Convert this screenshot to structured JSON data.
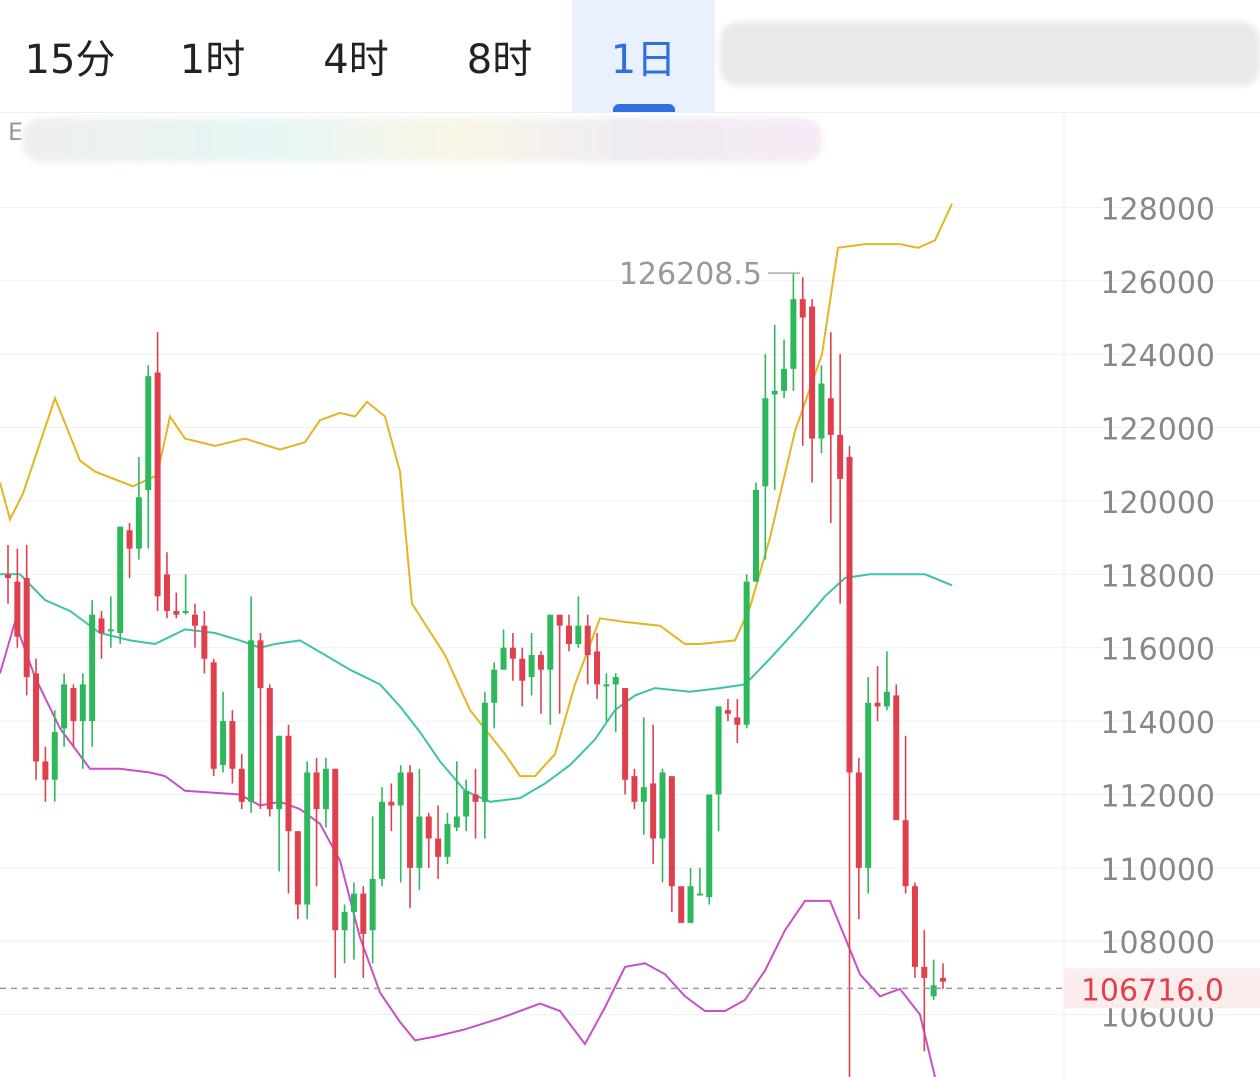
{
  "tabs": [
    {
      "label": "15分",
      "active": false
    },
    {
      "label": "1时",
      "active": false
    },
    {
      "label": "4时",
      "active": false
    },
    {
      "label": "8时",
      "active": false
    },
    {
      "label": "1日",
      "active": true
    }
  ],
  "legend_prefix": "E",
  "chart_data": {
    "type": "candlestick",
    "y_ticks": [
      128000,
      126000,
      124000,
      122000,
      120000,
      118000,
      116000,
      114000,
      112000,
      110000,
      108000,
      106000
    ],
    "ylim": [
      104300,
      130600
    ],
    "grid": true,
    "high_annotation": {
      "label": "126208.5",
      "value": 126208.5
    },
    "current_price": {
      "label": "106716.0",
      "value": 106716.0
    },
    "candles": [
      [
        118000,
        117900,
        118800,
        117200
      ],
      [
        117800,
        116300,
        118700,
        116000
      ],
      [
        117900,
        115200,
        118800,
        114700
      ],
      [
        115300,
        112900,
        115700,
        112400
      ],
      [
        112900,
        112400,
        113300,
        111800
      ],
      [
        112400,
        113700,
        114300,
        111800
      ],
      [
        113800,
        115000,
        115300,
        113300
      ],
      [
        114900,
        114000,
        115000,
        113300
      ],
      [
        114000,
        115000,
        115300,
        112700
      ],
      [
        114000,
        116900,
        117300,
        113300
      ],
      [
        116800,
        116400,
        117000,
        115700
      ],
      [
        116500,
        116500,
        117400,
        116000
      ],
      [
        116400,
        119300,
        119300,
        116100
      ],
      [
        119200,
        118700,
        119400,
        117900
      ],
      [
        118700,
        120100,
        121200,
        118400
      ],
      [
        120300,
        123400,
        123700,
        118700
      ],
      [
        123500,
        117400,
        124600,
        117000
      ],
      [
        118000,
        117000,
        118600,
        116800
      ],
      [
        117000,
        116900,
        117500,
        116800
      ],
      [
        117000,
        117000,
        118000,
        116900
      ],
      [
        116900,
        116600,
        117200,
        116000
      ],
      [
        116600,
        115700,
        117000,
        115300
      ],
      [
        115600,
        112700,
        115700,
        112500
      ],
      [
        112800,
        114000,
        114800,
        112600
      ],
      [
        114000,
        112700,
        114300,
        112300
      ],
      [
        112700,
        111800,
        113100,
        111600
      ],
      [
        111800,
        116200,
        117400,
        111500
      ],
      [
        116200,
        114900,
        116400,
        111600
      ],
      [
        114900,
        111600,
        115000,
        111400
      ],
      [
        111600,
        113600,
        113600,
        109900
      ],
      [
        113600,
        111000,
        113900,
        109300
      ],
      [
        111000,
        109000,
        111000,
        108600
      ],
      [
        109000,
        112600,
        112900,
        108600
      ],
      [
        112600,
        111600,
        113000,
        109500
      ],
      [
        111600,
        112700,
        113000,
        111100
      ],
      [
        112700,
        108300,
        112700,
        107000
      ],
      [
        108300,
        108800,
        109000,
        107400
      ],
      [
        108800,
        109300,
        109600,
        107500
      ],
      [
        109300,
        108200,
        109500,
        107000
      ],
      [
        108300,
        109700,
        111400,
        107400
      ],
      [
        109700,
        111800,
        112200,
        109500
      ],
      [
        111800,
        111700,
        112300,
        111000
      ],
      [
        111700,
        112600,
        112800,
        109600
      ],
      [
        112600,
        110000,
        112800,
        108900
      ],
      [
        110000,
        111400,
        112700,
        109400
      ],
      [
        111400,
        110800,
        111500,
        110000
      ],
      [
        110800,
        110300,
        111700,
        109700
      ],
      [
        110300,
        111200,
        111500,
        110100
      ],
      [
        111100,
        111400,
        112900,
        111000
      ],
      [
        111400,
        112100,
        112400,
        111000
      ],
      [
        112000,
        111800,
        112700,
        110800
      ],
      [
        111800,
        114500,
        114800,
        110800
      ],
      [
        114500,
        115400,
        115600,
        113800
      ],
      [
        115400,
        116000,
        116500,
        115400
      ],
      [
        116000,
        115700,
        116400,
        115100
      ],
      [
        115700,
        115100,
        116000,
        114400
      ],
      [
        115200,
        115800,
        116400,
        114700
      ],
      [
        115800,
        115400,
        115900,
        114200
      ],
      [
        115400,
        116900,
        116800,
        113900
      ],
      [
        116900,
        116600,
        116800,
        114200
      ],
      [
        116600,
        116100,
        116900,
        115900
      ],
      [
        116100,
        116600,
        117400,
        116000
      ],
      [
        116600,
        115800,
        116900,
        115000
      ],
      [
        115900,
        115000,
        116400,
        114600
      ],
      [
        115000,
        115000,
        115300,
        114000
      ],
      [
        115000,
        115200,
        115300,
        113700
      ],
      [
        114900,
        112400,
        114900,
        112000
      ],
      [
        112500,
        111800,
        112700,
        111600
      ],
      [
        111800,
        112200,
        114100,
        110900
      ],
      [
        112300,
        110800,
        113900,
        110100
      ],
      [
        110800,
        112600,
        112700,
        109600
      ],
      [
        112500,
        109500,
        112400,
        108800
      ],
      [
        109500,
        108500,
        109000,
        108600
      ],
      [
        108500,
        109500,
        110000,
        108500
      ],
      [
        109300,
        109300,
        110000,
        109300
      ],
      [
        109200,
        112000,
        112000,
        109000
      ],
      [
        112000,
        114400,
        114300,
        111000
      ],
      [
        114300,
        114200,
        114600,
        114000
      ],
      [
        114100,
        113900,
        114600,
        113400
      ],
      [
        113900,
        117800,
        118000,
        113800
      ],
      [
        117800,
        120300,
        120500,
        117800
      ],
      [
        120400,
        122800,
        124000,
        118400
      ],
      [
        122900,
        123000,
        124800,
        120300
      ],
      [
        123000,
        123600,
        124400,
        122800
      ],
      [
        123600,
        125500,
        126208,
        123000
      ],
      [
        125500,
        125000,
        126100,
        121500
      ],
      [
        125300,
        121700,
        125500,
        120500
      ],
      [
        121700,
        123200,
        123700,
        121300
      ],
      [
        122800,
        121800,
        124600,
        119400
      ],
      [
        121800,
        120600,
        124000,
        117200
      ],
      [
        121200,
        112600,
        121500,
        104300
      ],
      [
        112600,
        110000,
        113000,
        108600
      ],
      [
        110000,
        114500,
        115200,
        109300
      ],
      [
        114500,
        114400,
        115500,
        114000
      ],
      [
        114400,
        114800,
        115900,
        114300
      ],
      [
        114700,
        111300,
        115000,
        111300
      ],
      [
        111300,
        109500,
        113600,
        109300
      ],
      [
        109500,
        107300,
        109600,
        107000
      ],
      [
        107300,
        107000,
        108300,
        105000
      ],
      [
        106500,
        106800,
        107500,
        106400
      ],
      [
        107000,
        106900,
        107400,
        106700
      ]
    ],
    "boll": {
      "upper": [
        [
          0,
          120500
        ],
        [
          10,
          119500
        ],
        [
          23,
          120200
        ],
        [
          55,
          122800
        ],
        [
          80,
          121100
        ],
        [
          95,
          120800
        ],
        [
          133,
          120400
        ],
        [
          157,
          120700
        ],
        [
          170,
          122300
        ],
        [
          185,
          121700
        ],
        [
          215,
          121500
        ],
        [
          245,
          121700
        ],
        [
          280,
          121400
        ],
        [
          305,
          121600
        ],
        [
          320,
          122200
        ],
        [
          340,
          122400
        ],
        [
          355,
          122300
        ],
        [
          367,
          122700
        ],
        [
          385,
          122300
        ],
        [
          400,
          120800
        ],
        [
          412,
          117200
        ],
        [
          445,
          115800
        ],
        [
          470,
          114300
        ],
        [
          505,
          113100
        ],
        [
          520,
          112500
        ],
        [
          535,
          112500
        ],
        [
          555,
          113100
        ],
        [
          575,
          115000
        ],
        [
          600,
          116800
        ],
        [
          625,
          116700
        ],
        [
          660,
          116600
        ],
        [
          685,
          116100
        ],
        [
          700,
          116100
        ],
        [
          735,
          116200
        ],
        [
          750,
          117100
        ],
        [
          770,
          119000
        ],
        [
          795,
          121900
        ],
        [
          822,
          124000
        ],
        [
          838,
          126900
        ],
        [
          865,
          127000
        ],
        [
          900,
          127000
        ],
        [
          918,
          126900
        ],
        [
          935,
          127100
        ],
        [
          952,
          128100
        ]
      ],
      "middle": [
        [
          0,
          118000
        ],
        [
          20,
          118000
        ],
        [
          45,
          117300
        ],
        [
          70,
          117000
        ],
        [
          100,
          116400
        ],
        [
          130,
          116200
        ],
        [
          155,
          116100
        ],
        [
          170,
          116300
        ],
        [
          185,
          116500
        ],
        [
          215,
          116400
        ],
        [
          240,
          116200
        ],
        [
          260,
          116000
        ],
        [
          275,
          116100
        ],
        [
          300,
          116200
        ],
        [
          325,
          115800
        ],
        [
          350,
          115400
        ],
        [
          380,
          115000
        ],
        [
          400,
          114400
        ],
        [
          420,
          113700
        ],
        [
          440,
          112900
        ],
        [
          465,
          112100
        ],
        [
          490,
          111800
        ],
        [
          520,
          111900
        ],
        [
          545,
          112300
        ],
        [
          570,
          112800
        ],
        [
          595,
          113500
        ],
        [
          615,
          114300
        ],
        [
          635,
          114700
        ],
        [
          655,
          114900
        ],
        [
          690,
          114800
        ],
        [
          720,
          114900
        ],
        [
          745,
          115000
        ],
        [
          770,
          115700
        ],
        [
          800,
          116600
        ],
        [
          825,
          117400
        ],
        [
          845,
          117900
        ],
        [
          870,
          118000
        ],
        [
          900,
          118000
        ],
        [
          925,
          118000
        ],
        [
          952,
          117700
        ]
      ],
      "lower": [
        [
          0,
          115300
        ],
        [
          15,
          116700
        ],
        [
          35,
          115200
        ],
        [
          60,
          113800
        ],
        [
          90,
          112700
        ],
        [
          120,
          112700
        ],
        [
          150,
          112600
        ],
        [
          165,
          112500
        ],
        [
          185,
          112100
        ],
        [
          240,
          112000
        ],
        [
          260,
          111700
        ],
        [
          280,
          111800
        ],
        [
          300,
          111600
        ],
        [
          320,
          111200
        ],
        [
          340,
          110200
        ],
        [
          360,
          108100
        ],
        [
          380,
          106600
        ],
        [
          400,
          105800
        ],
        [
          415,
          105300
        ],
        [
          435,
          105400
        ],
        [
          465,
          105600
        ],
        [
          500,
          105900
        ],
        [
          520,
          106100
        ],
        [
          540,
          106300
        ],
        [
          560,
          106100
        ],
        [
          585,
          105200
        ],
        [
          605,
          106200
        ],
        [
          625,
          107300
        ],
        [
          645,
          107400
        ],
        [
          665,
          107100
        ],
        [
          685,
          106500
        ],
        [
          705,
          106100
        ],
        [
          725,
          106100
        ],
        [
          745,
          106400
        ],
        [
          765,
          107200
        ],
        [
          785,
          108300
        ],
        [
          805,
          109100
        ],
        [
          830,
          109100
        ],
        [
          860,
          107100
        ],
        [
          880,
          106500
        ],
        [
          900,
          106700
        ],
        [
          920,
          106000
        ],
        [
          935,
          104300
        ]
      ]
    }
  }
}
